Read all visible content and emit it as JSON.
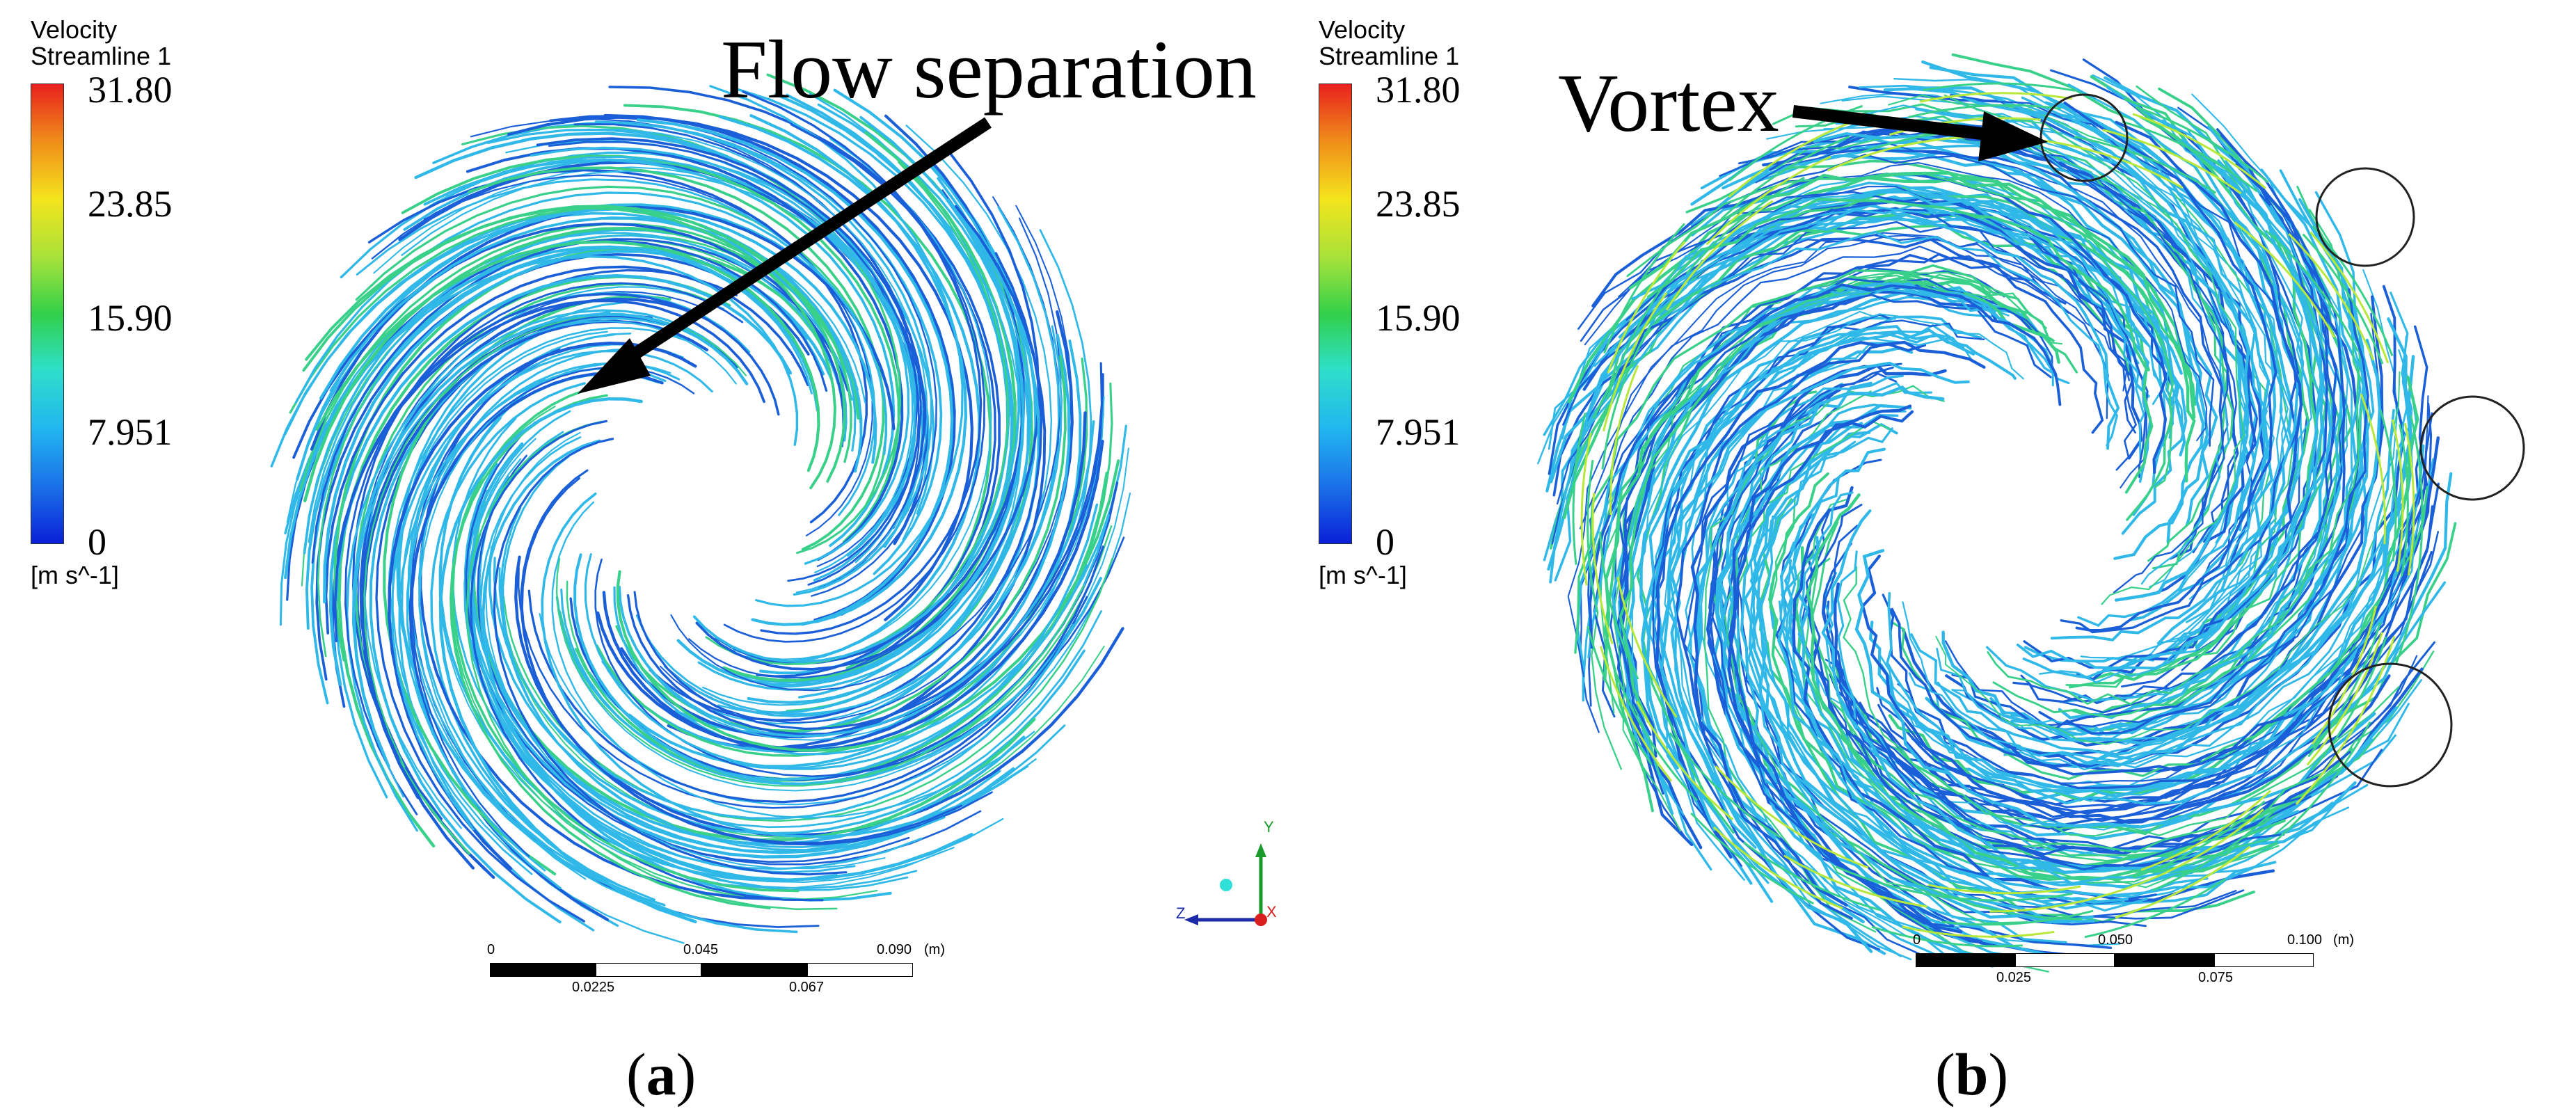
{
  "panel_a": {
    "legend_title_1": "Velocity",
    "legend_title_2": "Streamline 1",
    "ticks": [
      "31.80",
      "23.85",
      "15.90",
      "7.951",
      "0"
    ],
    "unit": "[m s^-1]",
    "annotation": "Flow separation",
    "scale_labels": [
      "0",
      "0.045",
      "0.090",
      "(m)",
      "0.0225",
      "0.067"
    ],
    "axis_labels": [
      "Y",
      "Z",
      "X"
    ],
    "sublabel_open": "(",
    "sublabel_letter": "a",
    "sublabel_close": ")"
  },
  "panel_b": {
    "legend_title_1": "Velocity",
    "legend_title_2": "Streamline 1",
    "ticks": [
      "31.80",
      "23.85",
      "15.90",
      "7.951",
      "0"
    ],
    "unit": "[m s^-1]",
    "annotation": "Vortex",
    "scale_labels": [
      "0",
      "0.050",
      "0.100",
      "(m)",
      "0.025",
      "0.075"
    ],
    "sublabel_open": "(",
    "sublabel_letter": "b",
    "sublabel_close": ")"
  },
  "colors": {
    "streamline_low": "#1a5fd8",
    "streamline_mid": "#2fb8e8",
    "streamline_high": "#39d08a",
    "streamline_peak": "#b8e83a"
  }
}
